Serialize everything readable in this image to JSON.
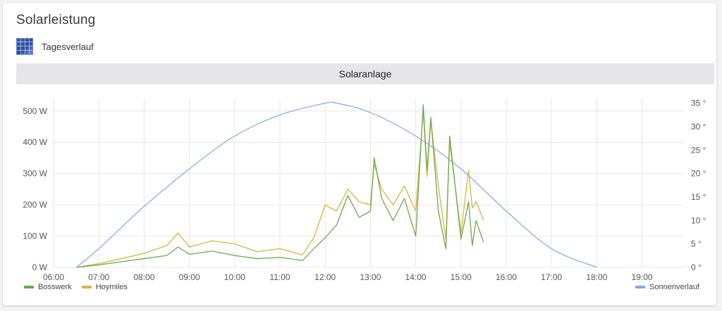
{
  "card": {
    "title": "Solarleistung",
    "subtitle": "Tagesverlauf",
    "icon": "solar-panel-icon",
    "section_label": "Solaranlage"
  },
  "chart_data": {
    "type": "line",
    "x_label": "",
    "x_ticks": [
      "06:00",
      "07:00",
      "08:00",
      "09:00",
      "10:00",
      "11:00",
      "12:00",
      "13:00",
      "14:00",
      "15:00",
      "16:00",
      "17:00",
      "18:00",
      "19:00"
    ],
    "y_left": {
      "ticks": [
        "0 W",
        "100 W",
        "200 W",
        "300 W",
        "400 W",
        "500 W"
      ],
      "range": [
        0,
        540
      ],
      "unit": "W"
    },
    "y_right": {
      "ticks": [
        "0 °",
        "5 °",
        "10 °",
        "15 °",
        "20 °",
        "25 °",
        "30 °",
        "35 °"
      ],
      "range": [
        0,
        36
      ],
      "unit": "°"
    },
    "grid": true,
    "legend_position": "bottom",
    "series": [
      {
        "name": "Bosswerk",
        "axis": "left",
        "color": "#6aaa4f",
        "x": [
          "06:30",
          "07:00",
          "07:30",
          "08:00",
          "08:30",
          "08:45",
          "09:00",
          "09:30",
          "10:00",
          "10:30",
          "11:00",
          "11:30",
          "11:45",
          "12:00",
          "12:15",
          "12:30",
          "12:45",
          "13:00",
          "13:05",
          "13:15",
          "13:30",
          "13:45",
          "14:00",
          "14:10",
          "14:15",
          "14:20",
          "14:30",
          "14:40",
          "14:45",
          "15:00",
          "15:10",
          "15:15",
          "15:20",
          "15:30"
        ],
        "y": [
          0,
          8,
          18,
          28,
          38,
          65,
          42,
          52,
          38,
          28,
          32,
          22,
          60,
          95,
          135,
          230,
          160,
          180,
          350,
          220,
          150,
          220,
          100,
          520,
          310,
          480,
          180,
          60,
          420,
          90,
          210,
          70,
          150,
          80
        ]
      },
      {
        "name": "Hoymiles",
        "axis": "left",
        "color": "#d7b441",
        "x": [
          "06:30",
          "07:00",
          "07:30",
          "08:00",
          "08:30",
          "08:45",
          "09:00",
          "09:30",
          "10:00",
          "10:30",
          "11:00",
          "11:30",
          "11:45",
          "12:00",
          "12:15",
          "12:30",
          "12:45",
          "13:00",
          "13:05",
          "13:15",
          "13:30",
          "13:45",
          "14:00",
          "14:10",
          "14:15",
          "14:20",
          "14:30",
          "14:40",
          "14:45",
          "15:00",
          "15:10",
          "15:15",
          "15:20",
          "15:30"
        ],
        "y": [
          0,
          12,
          28,
          45,
          70,
          110,
          65,
          85,
          75,
          50,
          60,
          40,
          95,
          200,
          180,
          250,
          210,
          200,
          330,
          250,
          200,
          260,
          180,
          500,
          290,
          470,
          260,
          90,
          400,
          110,
          310,
          190,
          210,
          150
        ]
      },
      {
        "name": "Sonnenverlauf",
        "axis": "right",
        "color": "#7fa7ea",
        "x": [
          "06:30",
          "07:00",
          "08:00",
          "09:00",
          "10:00",
          "11:00",
          "12:00",
          "12:15",
          "13:00",
          "14:00",
          "15:00",
          "16:00",
          "17:00",
          "18:00"
        ],
        "y": [
          0,
          4,
          13,
          21,
          28,
          32.5,
          35,
          35,
          33,
          28,
          21,
          12,
          4,
          0
        ]
      }
    ]
  }
}
